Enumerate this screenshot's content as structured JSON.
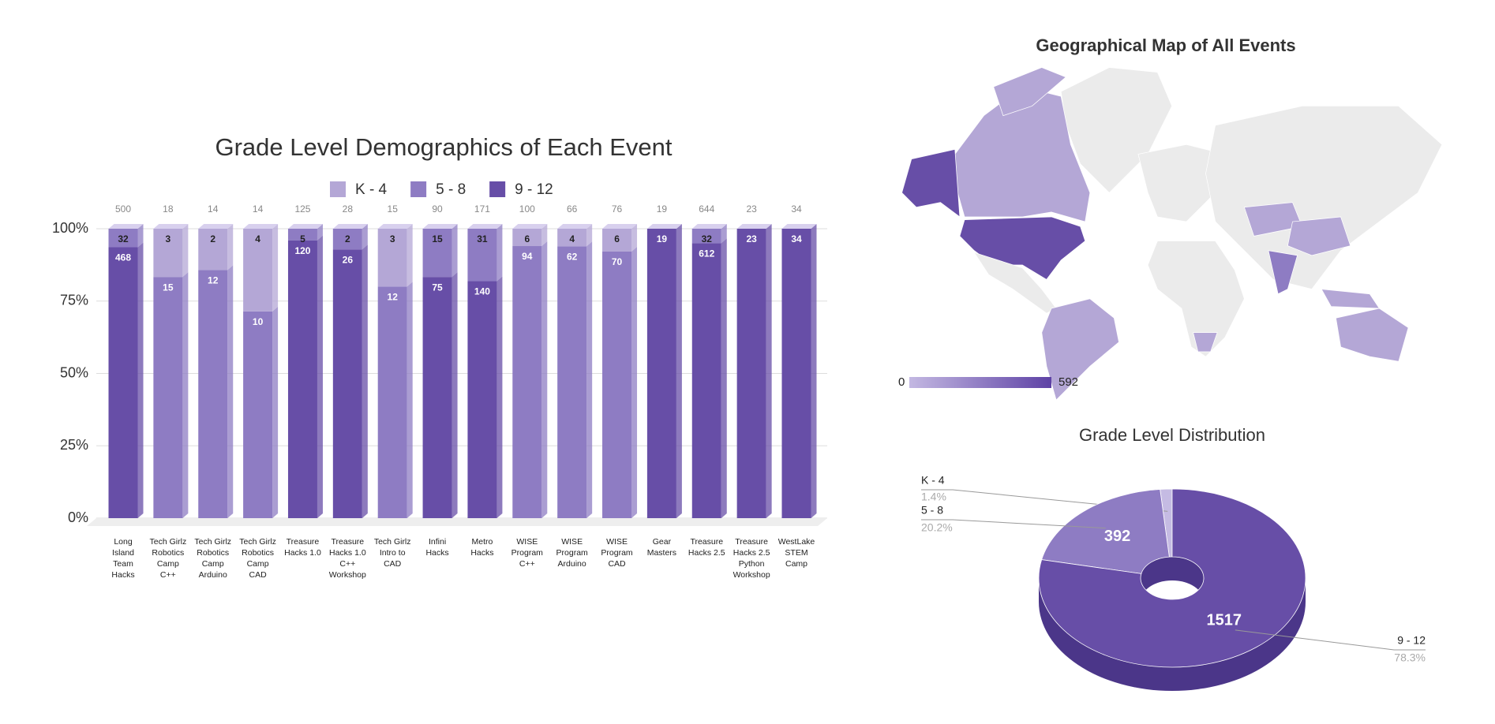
{
  "chart_data": [
    {
      "type": "bar",
      "stacked": "percent",
      "title": "Grade Level Demographics of Each Event",
      "categories": [
        "Long Island Team Hacks",
        "Tech Girlz Robotics Camp C++",
        "Tech Girlz Robotics Camp Arduino",
        "Tech Girlz Robotics Camp CAD",
        "Treasure Hacks 1.0",
        "Treasure Hacks 1.0 C++ Workshop",
        "Tech Girlz Intro to CAD",
        "Infini Hacks",
        "Metro Hacks",
        "WISE Program C++",
        "WISE Program Arduino",
        "WISE Program CAD",
        "Gear Masters",
        "Treasure Hacks 2.5",
        "Treasure Hacks 2.5 Python Workshop",
        "WestLake STEM Camp"
      ],
      "totals": [
        500,
        18,
        14,
        14,
        125,
        28,
        15,
        90,
        171,
        100,
        66,
        76,
        19,
        644,
        23,
        34
      ],
      "series": [
        {
          "name": "K - 4",
          "color": "#b4a7d6",
          "values": [
            null,
            3,
            2,
            4,
            null,
            null,
            3,
            null,
            null,
            6,
            4,
            6,
            null,
            null,
            null,
            null
          ]
        },
        {
          "name": "5 - 8",
          "color": "#8e7cc3",
          "values": [
            32,
            15,
            12,
            10,
            5,
            2,
            12,
            15,
            31,
            94,
            62,
            70,
            null,
            32,
            null,
            null
          ]
        },
        {
          "name": "9 - 12",
          "color": "#674ea7",
          "values": [
            468,
            null,
            null,
            null,
            120,
            26,
            null,
            75,
            140,
            null,
            null,
            null,
            19,
            612,
            23,
            34
          ]
        }
      ],
      "ylim": [
        0,
        100
      ],
      "yticks": [
        {
          "value": 0,
          "label": "0%"
        },
        {
          "value": 25,
          "label": "25%"
        },
        {
          "value": 50,
          "label": "50%"
        },
        {
          "value": 75,
          "label": "75%"
        },
        {
          "value": 100,
          "label": "100%"
        }
      ],
      "grid": true,
      "legend": "top"
    },
    {
      "type": "map",
      "title": "Geographical Map of All Events",
      "range": [
        0,
        592
      ],
      "colorscale": [
        "#c3b8e2",
        "#5e42a5"
      ]
    },
    {
      "type": "pie",
      "title": "Grade Level Distribution",
      "categories": [
        "K - 4",
        "5 - 8",
        "9 - 12"
      ],
      "values": [
        28,
        392,
        1517
      ],
      "value_labels": [
        "1.4%",
        "20.2%",
        "78.3%"
      ],
      "colors": [
        "#c5bbe3",
        "#8e7cc3",
        "#674ea7"
      ],
      "hole": true
    }
  ]
}
